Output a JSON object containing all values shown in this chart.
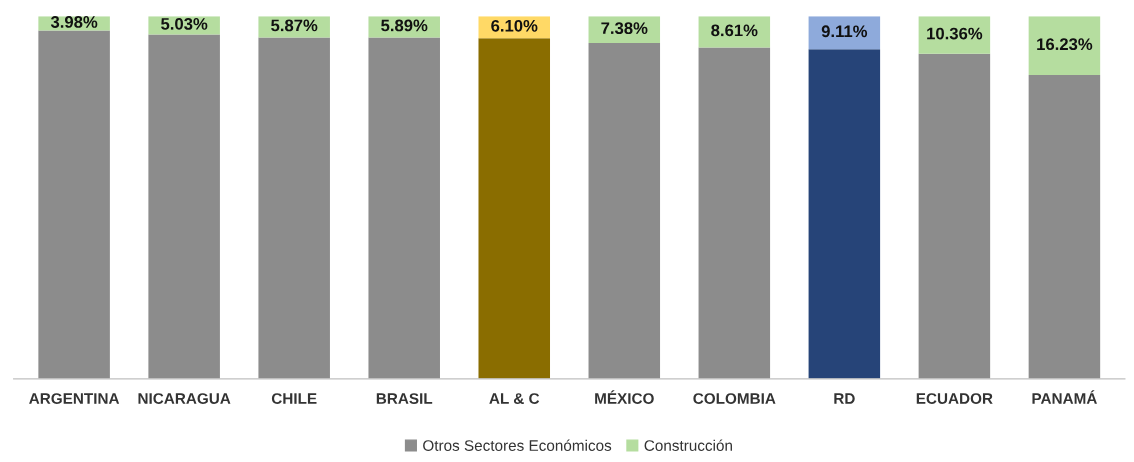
{
  "chart_data": {
    "type": "bar",
    "stacked": true,
    "ylim": [
      0,
      100
    ],
    "tick_labels": "x",
    "categories": [
      "ARGENTINA",
      "NICARAGUA",
      "CHILE",
      "BRASIL",
      "AL & C",
      "MÉXICO",
      "COLOMBIA",
      "RD",
      "ECUADOR",
      "PANAMÁ"
    ],
    "series": [
      {
        "name": "Otros Sectores Económicos",
        "color": "#8c8c8c",
        "colors": [
          "#8c8c8c",
          "#8c8c8c",
          "#8c8c8c",
          "#8c8c8c",
          "#8a6d00",
          "#8c8c8c",
          "#8c8c8c",
          "#264478",
          "#8c8c8c",
          "#8c8c8c"
        ],
        "values": [
          96.02,
          94.97,
          94.13,
          94.11,
          93.9,
          92.62,
          91.39,
          90.89,
          89.64,
          83.77
        ]
      },
      {
        "name": "Construcción",
        "color": "#b5dd9f",
        "colors": [
          "#b5dd9f",
          "#b5dd9f",
          "#b5dd9f",
          "#b5dd9f",
          "#ffd966",
          "#b5dd9f",
          "#b5dd9f",
          "#8eaadb",
          "#b5dd9f",
          "#b5dd9f"
        ],
        "values": [
          3.98,
          5.03,
          5.87,
          5.89,
          6.1,
          7.38,
          8.61,
          9.11,
          10.36,
          16.23
        ],
        "value_labels": [
          "3.98%",
          "5.03%",
          "5.87%",
          "5.89%",
          "6.10%",
          "7.38%",
          "8.61%",
          "9.11%",
          "10.36%",
          "16.23%"
        ]
      }
    ],
    "legend": "bottom"
  }
}
